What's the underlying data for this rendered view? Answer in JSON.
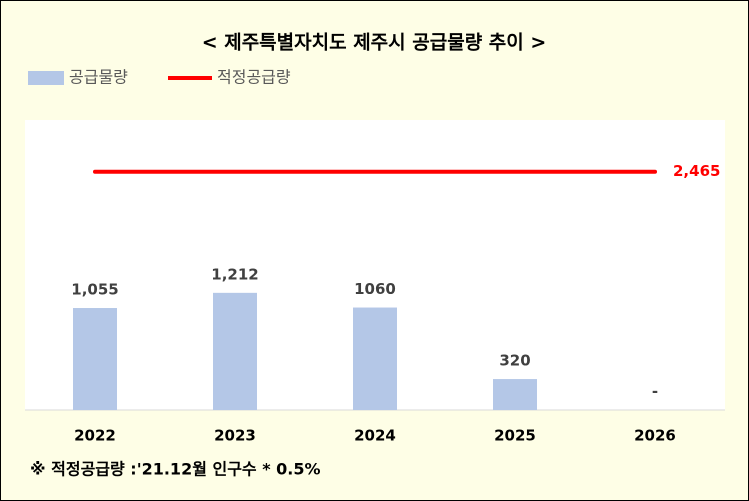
{
  "chart_data": {
    "type": "bar",
    "title": "< 제주특별자치도 제주시 공급물량 추이 >",
    "categories": [
      "2022",
      "2023",
      "2024",
      "2025",
      "2026"
    ],
    "series": [
      {
        "name": "공급물량",
        "color": "#b4c7e7",
        "values": [
          1055,
          1212,
          1060,
          320,
          null
        ],
        "value_labels": [
          "1,055",
          "1,212",
          "1060",
          "320",
          "-"
        ]
      }
    ],
    "reference_line": {
      "name": "적정공급량",
      "color": "#ff0000",
      "value": 2465,
      "value_label": "2,465"
    },
    "ylim": [
      0,
      3000
    ],
    "note": "※ 적정공급량 :'21.12월 인구수 * 0.5%"
  }
}
